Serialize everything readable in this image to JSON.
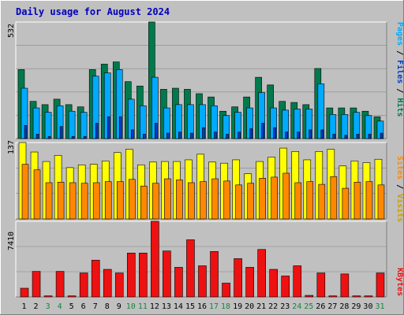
{
  "title": "Daily usage for August 2024",
  "colors": {
    "background": "#c0c0c0",
    "panel": "#c0c0c0",
    "grid": "#888888",
    "title": "#0000c0",
    "hits": "#007a4c",
    "files": "#00aaff",
    "pages": "#003cc8",
    "visits": "#ffff00",
    "sites": "#ff8800",
    "kbytes": "#ee1111",
    "weekend_label": "#11883c",
    "weekday_label": "#000000"
  },
  "chart_data": [
    {
      "type": "bar",
      "ylabel_max": "532",
      "legend": [
        "Pages",
        "Files",
        "Hits"
      ],
      "categories": [
        "1",
        "2",
        "3",
        "4",
        "5",
        "6",
        "7",
        "8",
        "9",
        "10",
        "11",
        "12",
        "13",
        "14",
        "15",
        "16",
        "17",
        "18",
        "19",
        "20",
        "21",
        "22",
        "23",
        "24",
        "25",
        "26",
        "27",
        "28",
        "29",
        "30",
        "31"
      ],
      "ylim": [
        0,
        532
      ],
      "series": [
        {
          "name": "Hits",
          "values": [
            315,
            170,
            155,
            180,
            155,
            145,
            315,
            340,
            350,
            260,
            240,
            532,
            225,
            230,
            225,
            205,
            190,
            125,
            145,
            190,
            280,
            245,
            170,
            165,
            155,
            320,
            140,
            140,
            140,
            125,
            100
          ]
        },
        {
          "name": "Files",
          "values": [
            230,
            140,
            120,
            150,
            125,
            120,
            285,
            300,
            315,
            180,
            150,
            280,
            140,
            155,
            155,
            155,
            150,
            105,
            120,
            140,
            210,
            140,
            130,
            135,
            135,
            250,
            110,
            110,
            120,
            105,
            80
          ]
        },
        {
          "name": "Pages",
          "values": [
            60,
            20,
            10,
            55,
            10,
            10,
            70,
            100,
            100,
            40,
            20,
            70,
            25,
            30,
            25,
            50,
            30,
            20,
            30,
            45,
            70,
            50,
            30,
            30,
            40,
            40,
            20,
            15,
            20,
            20,
            25
          ]
        }
      ]
    },
    {
      "type": "bar",
      "ylabel_max": "137",
      "legend": [
        "Sites",
        "Visits"
      ],
      "categories": [
        "1",
        "2",
        "3",
        "4",
        "5",
        "6",
        "7",
        "8",
        "9",
        "10",
        "11",
        "12",
        "13",
        "14",
        "15",
        "16",
        "17",
        "18",
        "19",
        "20",
        "21",
        "22",
        "23",
        "24",
        "25",
        "26",
        "27",
        "28",
        "29",
        "30",
        "31"
      ],
      "ylim": [
        0,
        137
      ],
      "series": [
        {
          "name": "Visits",
          "values": [
            137,
            120,
            103,
            114,
            92,
            97,
            98,
            104,
            119,
            125,
            97,
            102,
            103,
            103,
            106,
            116,
            102,
            100,
            106,
            81,
            103,
            111,
            127,
            121,
            106,
            121,
            125,
            95,
            104,
            101,
            107
          ]
        },
        {
          "name": "Sites",
          "values": [
            98,
            88,
            65,
            66,
            65,
            64,
            65,
            67,
            67,
            71,
            59,
            64,
            72,
            70,
            65,
            67,
            72,
            68,
            61,
            64,
            73,
            75,
            82,
            65,
            67,
            62,
            76,
            55,
            66,
            67,
            61
          ]
        }
      ]
    },
    {
      "type": "bar",
      "ylabel_max": "7410",
      "legend": [
        "KBytes"
      ],
      "categories": [
        "1",
        "2",
        "3",
        "4",
        "5",
        "6",
        "7",
        "8",
        "9",
        "10",
        "11",
        "12",
        "13",
        "14",
        "15",
        "16",
        "17",
        "18",
        "19",
        "20",
        "21",
        "22",
        "23",
        "24",
        "25",
        "26",
        "27",
        "28",
        "29",
        "30",
        "31"
      ],
      "ylim": [
        0,
        7410
      ],
      "series": [
        {
          "name": "KBytes",
          "values": [
            850,
            2500,
            100,
            2500,
            100,
            2350,
            3600,
            2700,
            2350,
            4300,
            4300,
            7410,
            4500,
            2900,
            5600,
            3050,
            4450,
            1350,
            3750,
            2900,
            4650,
            2700,
            2050,
            3050,
            150,
            2350,
            100,
            2250,
            100,
            100,
            2350
          ]
        }
      ]
    }
  ],
  "day_labels": [
    "1",
    "2",
    "3",
    "4",
    "5",
    "6",
    "7",
    "8",
    "9",
    "10",
    "11",
    "12",
    "13",
    "14",
    "15",
    "16",
    "17",
    "18",
    "19",
    "20",
    "21",
    "22",
    "23",
    "24",
    "25",
    "26",
    "27",
    "28",
    "29",
    "30",
    "31"
  ],
  "weekend_days": [
    3,
    4,
    10,
    11,
    17,
    18,
    24,
    25,
    31
  ]
}
